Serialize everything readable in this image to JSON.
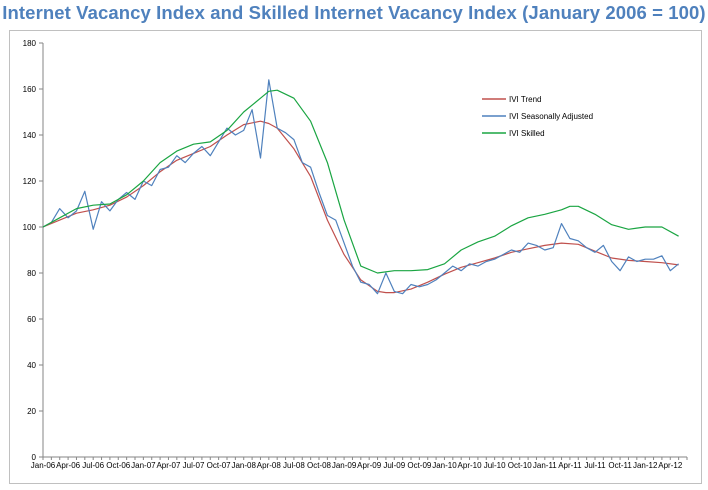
{
  "title": "Internet Vacancy Index and Skilled Internet Vacancy Index (January 2006 = 100)",
  "chart_data": {
    "type": "line",
    "title": "Internet Vacancy Index and Skilled Internet Vacancy Index (January 2006 = 100)",
    "xlabel": "",
    "ylabel": "",
    "ylim": [
      0,
      180
    ],
    "yticks": [
      0,
      20,
      40,
      60,
      80,
      100,
      120,
      140,
      160,
      180
    ],
    "grid": false,
    "legend_position": "top-right",
    "x_tick_labels": [
      "Jan-06",
      "Apr-06",
      "Jul-06",
      "Oct-06",
      "Jan-07",
      "Apr-07",
      "Jul-07",
      "Oct-07",
      "Jan-08",
      "Apr-08",
      "Jul-08",
      "Oct-08",
      "Jan-09",
      "Apr-09",
      "Jul-09",
      "Oct-09",
      "Jan-10",
      "Apr-10",
      "Jul-10",
      "Oct-10",
      "Jan-11",
      "Apr-11",
      "Jul-11",
      "Oct-11",
      "Jan-12",
      "Apr-12"
    ],
    "x_tick_months": [
      0,
      3,
      6,
      9,
      12,
      15,
      18,
      21,
      24,
      27,
      30,
      33,
      36,
      39,
      42,
      45,
      48,
      51,
      54,
      57,
      60,
      63,
      66,
      69,
      72,
      75
    ],
    "series": [
      {
        "name": "IVI Trend",
        "color": "#c0504d",
        "x": [
          0,
          2,
          4,
          6,
          8,
          10,
          12,
          14,
          16,
          18,
          20,
          22,
          24,
          26,
          27,
          28,
          30,
          32,
          34,
          36,
          38,
          40,
          41,
          42,
          44,
          46,
          48,
          50,
          52,
          54,
          56,
          58,
          60,
          62,
          64,
          66,
          68,
          70,
          72,
          74,
          76
        ],
        "values": [
          100,
          103,
          106,
          107.5,
          109.5,
          113,
          118,
          124,
          129,
          132,
          135,
          140,
          144.5,
          146,
          145,
          143,
          134,
          122,
          103,
          88,
          77,
          72,
          71.5,
          71.5,
          73,
          76,
          79.5,
          82.5,
          84.5,
          86.5,
          89,
          90.5,
          92,
          93,
          92.5,
          89.5,
          86.5,
          85.5,
          85,
          84.5,
          83.5
        ]
      },
      {
        "name": "IVI Seasonally Adjusted",
        "color": "#4f81bd",
        "x": [
          0,
          1,
          2,
          3,
          4,
          5,
          6,
          7,
          8,
          9,
          10,
          11,
          12,
          13,
          14,
          15,
          16,
          17,
          18,
          19,
          20,
          21,
          22,
          23,
          24,
          25,
          26,
          27,
          28,
          29,
          30,
          31,
          32,
          33,
          34,
          35,
          36,
          37,
          38,
          39,
          40,
          41,
          42,
          43,
          44,
          45,
          46,
          47,
          48,
          49,
          50,
          51,
          52,
          53,
          54,
          55,
          56,
          57,
          58,
          59,
          60,
          61,
          62,
          63,
          64,
          65,
          66,
          67,
          68,
          69,
          70,
          71,
          72,
          73,
          74,
          75,
          76
        ],
        "values": [
          100,
          102,
          108,
          104,
          107,
          115.5,
          99,
          111,
          107,
          112,
          115,
          112,
          120,
          118,
          125,
          126,
          131,
          128,
          132,
          135,
          131,
          137,
          143,
          140,
          142,
          151,
          130,
          164,
          143,
          141,
          138,
          128,
          126,
          115,
          105,
          103,
          93,
          83,
          76,
          75,
          71,
          80,
          72,
          71,
          75,
          74,
          75,
          77,
          80,
          83,
          81,
          84,
          83,
          85,
          86,
          88,
          90,
          89,
          93,
          92,
          90,
          91,
          101.5,
          95,
          94,
          91,
          89,
          92,
          85,
          81,
          87,
          85,
          86,
          86,
          87.5,
          81,
          84
        ]
      },
      {
        "name": "IVI Skilled",
        "color": "#1aa542",
        "x": [
          0,
          2,
          4,
          6,
          8,
          10,
          12,
          14,
          16,
          18,
          20,
          22,
          24,
          26,
          27,
          28,
          30,
          32,
          34,
          36,
          38,
          40,
          42,
          44,
          46,
          48,
          50,
          52,
          54,
          56,
          58,
          60,
          62,
          63,
          64,
          66,
          68,
          70,
          72,
          74,
          76
        ],
        "values": [
          100,
          104,
          108,
          109.5,
          110,
          114,
          120,
          128,
          133,
          136,
          137,
          142,
          150,
          156,
          159,
          159.5,
          156,
          146,
          128,
          103,
          83,
          80,
          81,
          81,
          81.5,
          84,
          90,
          93.5,
          96,
          100.5,
          104,
          105.5,
          107.5,
          109,
          109,
          105.5,
          101,
          99,
          100,
          100,
          96
        ]
      }
    ]
  }
}
